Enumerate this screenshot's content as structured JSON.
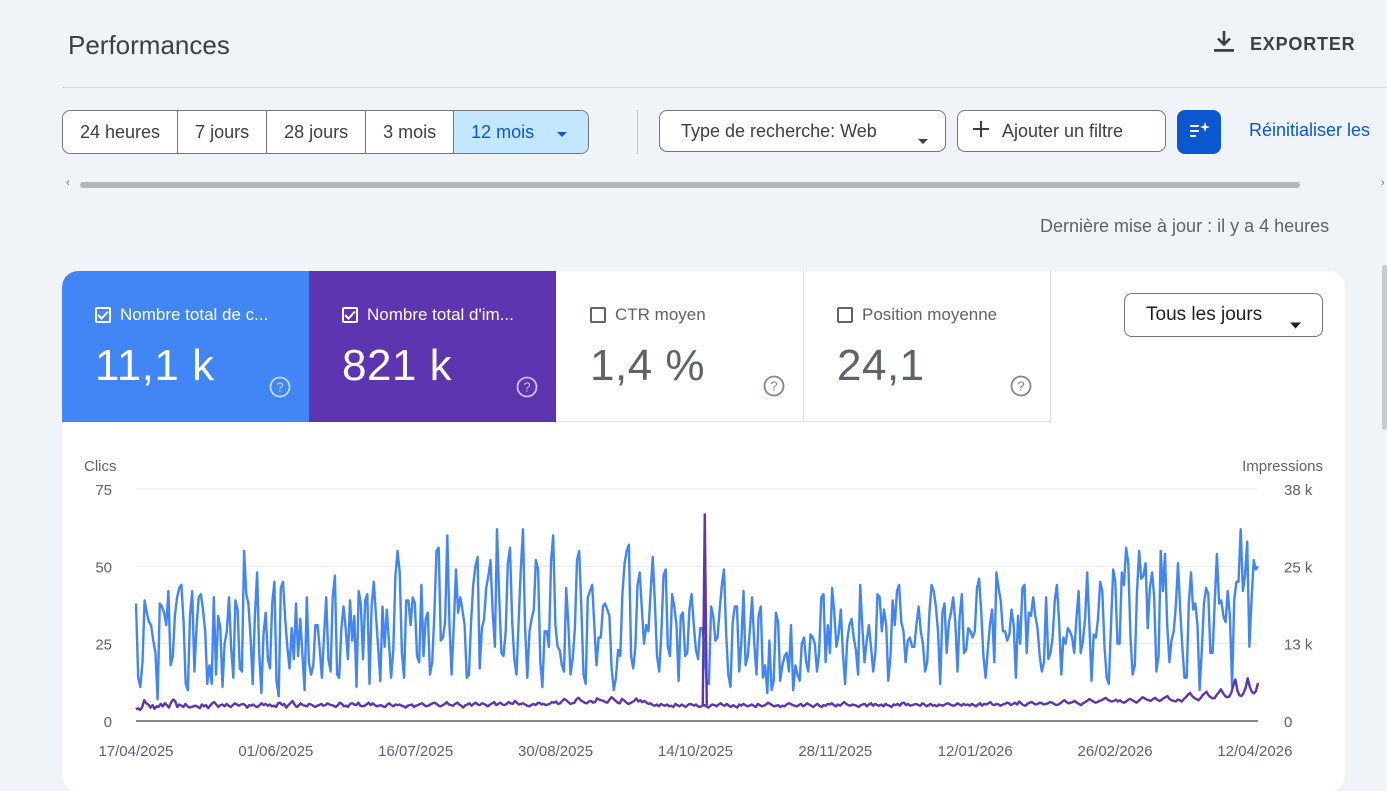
{
  "header": {
    "title": "Performances",
    "export_label": "EXPORTER"
  },
  "filters": {
    "date_ranges": [
      "24 heures",
      "7 jours",
      "28 jours",
      "3 mois",
      "12 mois"
    ],
    "selected_range": "12 mois",
    "search_type": "Type de recherche: Web",
    "add_filter": "Ajouter un filtre",
    "reset": "Réinitialiser les"
  },
  "status": {
    "updated": "Dernière mise à jour : il y a 4 heures"
  },
  "metrics": [
    {
      "label": "Nombre total de c...",
      "value": "11,1 k",
      "checked": true,
      "color": "#4285f4"
    },
    {
      "label": "Nombre total d'im...",
      "value": "821 k",
      "checked": true,
      "color": "#5e35b1"
    },
    {
      "label": "CTR moyen",
      "value": "1,4 %",
      "checked": false
    },
    {
      "label": "Position moyenne",
      "value": "24,1",
      "checked": false
    }
  ],
  "granularity": "Tous les jours",
  "colors": {
    "accent": "#0b57d0",
    "clicks": "#4285f4",
    "impressions": "#5e35b1",
    "selected_chip": "#c2e7ff"
  },
  "icons": [
    "download-icon",
    "caret-down-icon",
    "plus-icon",
    "filter-sparkle-icon",
    "checkbox-icon",
    "help-icon"
  ],
  "chart_data": {
    "type": "line",
    "ylabel_left": "Clics",
    "ylabel_right": "Impressions",
    "left_ticks": [
      "0",
      "25",
      "50",
      "75"
    ],
    "left_range": [
      0,
      75
    ],
    "right_ticks": [
      "0",
      "13 k",
      "25 k",
      "38 k"
    ],
    "right_range": [
      0,
      38000
    ],
    "x_ticks": [
      "17/04/2025",
      "01/06/2025",
      "16/07/2025",
      "30/08/2025",
      "14/10/2025",
      "28/11/2025",
      "12/01/2026",
      "26/02/2026",
      "12/04/2026"
    ],
    "x_range": [
      "2025-04-17",
      "2026-04-13"
    ],
    "grid": true,
    "series": [
      {
        "name": "Clics",
        "axis": "left",
        "values": [
          38,
          14,
          11,
          19,
          39,
          35,
          32,
          31,
          26,
          22,
          7,
          38,
          37,
          35,
          31,
          42,
          18,
          21,
          34,
          40,
          43,
          44,
          32,
          12,
          10,
          34,
          42,
          16,
          30,
          40,
          41,
          36,
          29,
          12,
          18,
          12,
          40,
          15,
          34,
          30,
          11,
          25,
          29,
          40,
          24,
          14,
          39,
          36,
          17,
          16,
          55,
          41,
          38,
          27,
          12,
          34,
          48,
          22,
          9,
          28,
          35,
          20,
          17,
          38,
          45,
          13,
          8,
          43,
          45,
          33,
          24,
          17,
          30,
          20,
          38,
          21,
          33,
          21,
          10,
          40,
          19,
          15,
          18,
          31,
          31,
          23,
          14,
          28,
          40,
          20,
          16,
          40,
          47,
          15,
          14,
          30,
          37,
          30,
          20,
          39,
          26,
          34,
          11,
          42,
          38,
          20,
          39,
          41,
          12,
          37,
          45,
          34,
          24,
          13,
          37,
          24,
          36,
          26,
          14,
          23,
          47,
          55,
          48,
          22,
          14,
          39,
          39,
          31,
          40,
          38,
          21,
          19,
          44,
          21,
          33,
          35,
          15,
          19,
          34,
          55,
          56,
          26,
          27,
          32,
          60,
          31,
          15,
          31,
          49,
          35,
          40,
          36,
          31,
          14,
          15,
          32,
          44,
          50,
          53,
          17,
          30,
          33,
          43,
          47,
          52,
          35,
          24,
          62,
          40,
          22,
          21,
          29,
          51,
          56,
          32,
          20,
          15,
          32,
          49,
          62,
          30,
          14,
          29,
          33,
          36,
          52,
          49,
          19,
          11,
          29,
          29,
          24,
          52,
          60,
          31,
          24,
          23,
          18,
          16,
          43,
          31,
          15,
          20,
          30,
          52,
          55,
          37,
          15,
          12,
          40,
          42,
          44,
          31,
          18,
          27,
          27,
          37,
          38,
          36,
          34,
          17,
          10,
          14,
          23,
          21,
          41,
          51,
          55,
          57,
          21,
          17,
          24,
          44,
          48,
          36,
          25,
          31,
          29,
          41,
          53,
          39,
          21,
          16,
          28,
          47,
          49,
          24,
          21,
          41,
          37,
          31,
          13,
          34,
          35,
          21,
          22,
          36,
          41,
          31,
          23,
          20,
          30,
          30,
          24,
          12,
          12,
          37,
          34,
          26,
          27,
          36,
          44,
          49,
          28,
          15,
          11,
          32,
          37,
          37,
          16,
          25,
          42,
          18,
          21,
          30,
          40,
          25,
          15,
          34,
          37,
          14,
          18,
          9,
          26,
          10,
          13,
          35,
          32,
          13,
          18,
          21,
          22,
          16,
          31,
          10,
          18,
          15,
          13,
          25,
          27,
          19,
          16,
          28,
          27,
          25,
          16,
          22,
          40,
          41,
          19,
          31,
          22,
          43,
          35,
          24,
          28,
          36,
          22,
          12,
          26,
          31,
          33,
          27,
          23,
          15,
          44,
          30,
          19,
          26,
          31,
          24,
          16,
          22,
          41,
          40,
          29,
          36,
          31,
          13,
          21,
          39,
          31,
          42,
          44,
          32,
          29,
          19,
          26,
          27,
          24,
          24,
          31,
          37,
          29,
          25,
          16,
          19,
          35,
          44,
          42,
          37,
          29,
          12,
          35,
          38,
          22,
          32,
          35,
          40,
          32,
          16,
          34,
          41,
          22,
          23,
          30,
          29,
          27,
          29,
          43,
          46,
          35,
          21,
          14,
          23,
          31,
          36,
          19,
          48,
          43,
          39,
          29,
          29,
          26,
          28,
          36,
          31,
          14,
          34,
          25,
          43,
          44,
          22,
          35,
          34,
          40,
          34,
          30,
          21,
          16,
          19,
          40,
          20,
          22,
          27,
          39,
          44,
          32,
          15,
          27,
          25,
          30,
          29,
          27,
          22,
          33,
          42,
          22,
          26,
          33,
          48,
          31,
          13,
          28,
          27,
          33,
          45,
          42,
          24,
          14,
          12,
          31,
          49,
          45,
          25,
          25,
          48,
          44,
          56,
          51,
          27,
          15,
          18,
          41,
          55,
          46,
          47,
          51,
          30,
          43,
          48,
          40,
          16,
          21,
          55,
          42,
          54,
          31,
          19,
          26,
          29,
          37,
          51,
          36,
          24,
          14,
          14,
          38,
          48,
          36,
          38,
          31,
          10,
          23,
          38,
          43,
          41,
          22,
          22,
          39,
          54,
          38,
          39,
          34,
          32,
          42,
          34,
          11,
          39,
          45,
          45,
          62,
          42,
          47,
          58,
          24,
          39,
          52,
          49,
          50
        ]
      },
      {
        "name": "Impressions",
        "axis": "right",
        "values": [
          1900,
          2100,
          1800,
          2300,
          3400,
          2900,
          2700,
          2200,
          2600,
          2000,
          2400,
          2300,
          2800,
          2400,
          2900,
          2600,
          2200,
          3000,
          3500,
          3300,
          2300,
          2700,
          2500,
          2300,
          2800,
          2400,
          2200,
          2300,
          2400,
          2500,
          2300,
          2100,
          2700,
          2400,
          2600,
          2100,
          2500,
          2900,
          3100,
          2700,
          2300,
          2600,
          2700,
          2400,
          2800,
          2500,
          2300,
          2600,
          2900,
          2700,
          2500,
          2700,
          2800,
          2600,
          2200,
          2600,
          2500,
          2700,
          2400,
          2300,
          2600,
          2900,
          2600,
          2800,
          2500,
          2700,
          2400,
          2500,
          2300,
          2900,
          3000,
          2600,
          2800,
          2200,
          2600,
          2900,
          3300,
          2700,
          2300,
          2500,
          2900,
          2600,
          2500,
          2400,
          2800,
          2700,
          2500,
          2300,
          2500,
          2600,
          2800,
          2500,
          2600,
          2900,
          2700,
          2600,
          2500,
          2300,
          2600,
          3000,
          2800,
          2400,
          2500,
          2300,
          2800,
          2900,
          2700,
          2600,
          3000,
          2500,
          2400,
          2500,
          2700,
          3000,
          2600,
          2900,
          2600,
          2400,
          2500,
          2600,
          2400,
          2300,
          2700,
          2900,
          2600,
          2400,
          2700,
          2600,
          2700,
          2500,
          2400,
          2200,
          2500,
          2600,
          2700,
          2300,
          2500,
          2600,
          2800,
          2900,
          2600,
          2400,
          2500,
          2700,
          2900,
          3000,
          2800,
          2500,
          2400,
          2600,
          2800,
          3100,
          2700,
          2600,
          2500,
          2800,
          3000,
          2700,
          2500,
          2200,
          2600,
          2700,
          2900,
          2500,
          2800,
          3000,
          2700,
          2600,
          2900,
          2800,
          2600,
          2400,
          2700,
          2900,
          3100,
          2600,
          2800,
          3000,
          2700,
          2600,
          2800,
          3100,
          2900,
          2800,
          3300,
          3000,
          2700,
          2800,
          2900,
          2700,
          2500,
          2400,
          2600,
          2800,
          2600,
          2900,
          3000,
          2700,
          2800,
          2600,
          2700,
          2800,
          3100,
          3000,
          3200,
          2800,
          2900,
          3300,
          3600,
          3400,
          3100,
          2800,
          2900,
          3000,
          3600,
          3800,
          3400,
          3200,
          3000,
          2900,
          3200,
          3300,
          3000,
          3100,
          3700,
          3500,
          3400,
          3300,
          3100,
          3000,
          3500,
          3900,
          3600,
          3300,
          3000,
          2900,
          3600,
          3400,
          3100,
          2800,
          2900,
          3100,
          3300,
          3700,
          3200,
          3400,
          3100,
          3300,
          3000,
          2800,
          2900,
          2600,
          2500,
          2700,
          2400,
          2800,
          2600,
          2500,
          2700,
          2400,
          2500,
          2300,
          2800,
          2600,
          2400,
          2700,
          2500,
          2300,
          2600,
          2800,
          2700,
          2500,
          2700,
          2400,
          2300,
          2500,
          2600,
          2400,
          2200,
          2500,
          2700,
          2600,
          2400,
          2700,
          2900,
          2600,
          2500,
          2800,
          2500,
          2300,
          2600,
          2400,
          2200,
          2700,
          2500,
          2800,
          2600,
          2400,
          2500,
          2700,
          2500,
          2300,
          2800,
          2600,
          2400,
          2500,
          2700,
          3000,
          2800,
          2600,
          2400,
          2500,
          2600,
          2300,
          2500,
          2400,
          2700,
          2900,
          2800,
          2600,
          2500,
          2400,
          2600,
          2800,
          2400,
          2600,
          2900,
          2700,
          2500,
          2300,
          2600,
          2800,
          2500,
          2300,
          2600,
          2500,
          2800,
          2700,
          2900,
          2600,
          2400,
          2700,
          2500,
          2800,
          3100,
          2800,
          2600,
          2500,
          2700,
          2600,
          2500,
          2300,
          2600,
          2700,
          2800,
          2400,
          2700,
          2900,
          2500,
          2800,
          2600,
          2500,
          2700,
          2400,
          2800,
          2600,
          2500,
          2300,
          2700,
          2600,
          2800,
          2500,
          2900,
          3000,
          2600,
          2800,
          2500,
          2600,
          2700,
          2800,
          2600,
          2500,
          2900,
          2700,
          2400,
          2600,
          2800,
          2500,
          2600,
          2400,
          2700,
          2600,
          2500,
          2700,
          2900,
          2800,
          2600,
          2500,
          2600,
          2900,
          2700,
          2500,
          2800,
          2600,
          2700,
          2500,
          2800,
          2600,
          2400,
          2700,
          2900,
          2500,
          2800,
          2700,
          2900,
          3100,
          2700,
          2600,
          2800,
          2700,
          2500,
          2700,
          2800,
          3000,
          2900,
          2600,
          2800,
          3000,
          2700,
          3200,
          2900,
          2600,
          2500,
          2800,
          3000,
          3100,
          2900,
          2700,
          2800,
          3000,
          2900,
          2700,
          2800,
          2900,
          3100,
          3000,
          2800,
          2600,
          2700,
          2900,
          3200,
          3400,
          3100,
          2900,
          3000,
          3100,
          3300,
          3000,
          2800,
          2600,
          2900,
          3100,
          3300,
          3600,
          3400,
          3200,
          3000,
          3100,
          3300,
          3400,
          3600,
          3800,
          3500,
          3300,
          3200,
          3300,
          3500,
          3200,
          3400,
          3100,
          3000,
          3200,
          3500,
          3600,
          3400,
          3200,
          3000,
          3300,
          3600,
          3900,
          3700,
          3500,
          3400,
          3300,
          3600,
          3800,
          3500,
          3300,
          3400,
          3700,
          3900,
          4100,
          3600,
          3400,
          3300,
          3200,
          3500,
          3400,
          3200,
          3600,
          3900,
          4300,
          4600,
          4100,
          3800,
          3600,
          3400,
          3700,
          4200,
          4500,
          4800,
          4200,
          3900,
          3700,
          3800,
          4300,
          4700,
          5200,
          4600,
          4100,
          3900,
          4000,
          4600,
          5800,
          6800,
          5000,
          4200,
          4100,
          4600,
          5400,
          7000,
          5600,
          4800,
          4500,
          4900,
          6200
        ]
      },
      {
        "name": "Impressions spike",
        "axis": "right",
        "spikes": [
          {
            "date": "2025-10-17",
            "value": 34000
          }
        ]
      }
    ]
  }
}
